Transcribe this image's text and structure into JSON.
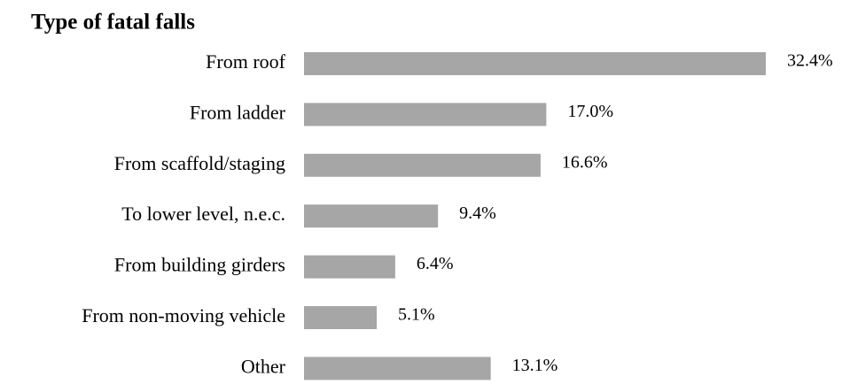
{
  "chart_data": {
    "type": "bar",
    "orientation": "horizontal",
    "title": "Type of fatal falls",
    "categories": [
      "From roof",
      "From ladder",
      "From scaffold/staging",
      "To lower level, n.e.c.",
      "From building girders",
      "From non-moving vehicle",
      "Other"
    ],
    "values": [
      32.4,
      17.0,
      16.6,
      9.4,
      6.4,
      5.1,
      13.1
    ],
    "value_labels": [
      "32.4%",
      "17.0%",
      "16.6%",
      "9.4%",
      "6.4%",
      "5.1%",
      "13.1%"
    ],
    "color": "#a6a6a6"
  }
}
